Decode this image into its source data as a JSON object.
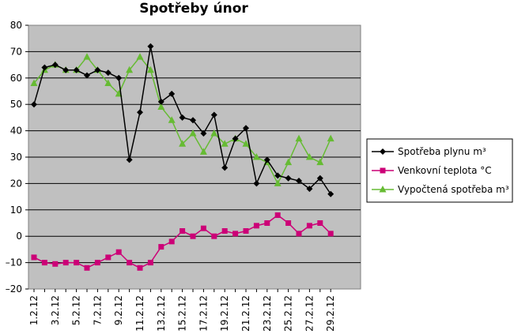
{
  "chart_data": {
    "type": "line",
    "title": "Spotřeby únor",
    "xlabel": "",
    "ylabel": "",
    "ylim": [
      -20,
      80
    ],
    "yticks": [
      80,
      70,
      60,
      50,
      40,
      30,
      20,
      10,
      0,
      -10,
      -20
    ],
    "grid": true,
    "legend_position": "right",
    "categories": [
      "1.2.12",
      "2.2.12",
      "3.2.12",
      "4.2.12",
      "5.2.12",
      "6.2.12",
      "7.2.12",
      "8.2.12",
      "9.2.12",
      "10.2.12",
      "11.2.12",
      "12.2.12",
      "13.2.12",
      "14.2.12",
      "15.2.12",
      "16.2.12",
      "17.2.12",
      "18.2.12",
      "19.2.12",
      "20.2.12",
      "21.2.12",
      "22.2.12",
      "23.2.12",
      "24.2.12",
      "25.2.12",
      "26.2.12",
      "27.2.12",
      "28.2.12",
      "29.2.12"
    ],
    "xtick_labels_shown": [
      "1.2.12",
      "3.2.12",
      "5.2.12",
      "7.2.12",
      "9.2.12",
      "11.2.12",
      "13.2.12",
      "15.2.12",
      "17.2.12",
      "19.2.12",
      "21.2.12",
      "23.2.12",
      "25.2.12",
      "27.2.12",
      "29.2.12"
    ],
    "series": [
      {
        "name": "Spotřeba plynu m³",
        "color": "#000000",
        "marker": "diamond",
        "values": [
          50,
          64,
          65,
          63,
          63,
          61,
          63,
          62,
          60,
          29,
          47,
          72,
          51,
          54,
          45,
          44,
          39,
          46,
          26,
          37,
          41,
          20,
          29,
          23,
          22,
          21,
          18,
          22,
          16
        ]
      },
      {
        "name": "Venkovní teplota °C",
        "color": "#cc0077",
        "marker": "square",
        "values": [
          -8,
          -10,
          -10.5,
          -10,
          -10,
          -12,
          -10,
          -8,
          -6,
          -10,
          -12,
          -10,
          -4,
          -2,
          2,
          0,
          3,
          0,
          2,
          1,
          2,
          4,
          5,
          8,
          5,
          1,
          4,
          5,
          1
        ]
      },
      {
        "name": "Vypočtená spotřeba m³",
        "color": "#66bb33",
        "marker": "triangle",
        "values": [
          58,
          63,
          65,
          63,
          63,
          68,
          63,
          58,
          54,
          63,
          68,
          63,
          49,
          44,
          35,
          39,
          32,
          39,
          35,
          37,
          35,
          30,
          28,
          20,
          28,
          37,
          30,
          28,
          37
        ]
      }
    ]
  }
}
